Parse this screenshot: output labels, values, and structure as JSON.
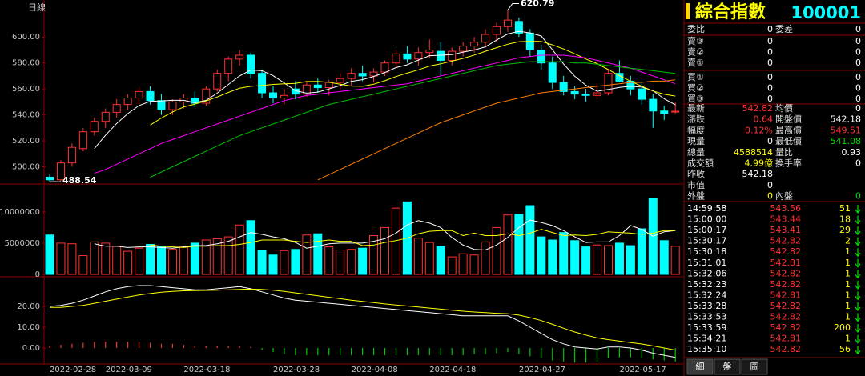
{
  "chart_data": [
    {
      "type": "candlestick",
      "title": "日線",
      "up_color": "#ff3232",
      "down_color": "#00ffff",
      "categories": [
        "2022-02-28",
        null,
        null,
        null,
        null,
        "2022-03-09",
        null,
        null,
        null,
        null,
        null,
        null,
        "2022-03-18",
        null,
        null,
        null,
        null,
        null,
        null,
        null,
        "2022-03-28",
        null,
        null,
        null,
        null,
        null,
        null,
        "2022-04-08",
        null,
        null,
        null,
        null,
        null,
        null,
        "2022-04-18",
        null,
        null,
        null,
        null,
        null,
        null,
        null,
        "2022-04-27",
        null,
        null,
        null,
        null,
        null,
        null,
        null,
        null,
        "2022-05-17",
        null,
        null,
        null,
        null,
        null
      ],
      "open": [
        492,
        490,
        503,
        514,
        527,
        535,
        542,
        548,
        553,
        558,
        551,
        544,
        550,
        553,
        549,
        560,
        572,
        583,
        586,
        572,
        557,
        553,
        560,
        556,
        563,
        561,
        565,
        568,
        572,
        570,
        573,
        580,
        587,
        583,
        588,
        589,
        582,
        589,
        593,
        596,
        602,
        608,
        612,
        603,
        590,
        580,
        565,
        558,
        556,
        555,
        557,
        572,
        566,
        560,
        552,
        543,
        542.18
      ],
      "high": [
        494,
        505,
        518,
        530,
        538,
        545,
        552,
        556,
        561,
        562,
        556,
        552,
        556,
        558,
        562,
        575,
        585,
        590,
        588,
        575,
        562,
        560,
        566,
        566,
        568,
        567,
        572,
        576,
        578,
        576,
        582,
        590,
        593,
        592,
        598,
        596,
        592,
        596,
        600,
        606,
        611,
        620.79,
        615,
        606,
        594,
        585,
        570,
        562,
        560,
        564,
        575,
        582,
        570,
        564,
        556,
        547,
        549.51
      ],
      "low": [
        488.54,
        489,
        500,
        512,
        524,
        530,
        538,
        544,
        548,
        548,
        540,
        540,
        545,
        546,
        547,
        558,
        566,
        578,
        568,
        553,
        549,
        548,
        552,
        554,
        557,
        555,
        560,
        562,
        566,
        565,
        570,
        576,
        580,
        578,
        584,
        570,
        578,
        585,
        588,
        592,
        596,
        604,
        600,
        585,
        575,
        560,
        555,
        552,
        550,
        552,
        555,
        565,
        555,
        548,
        530,
        536,
        541.08
      ],
      "close": [
        490,
        503,
        515,
        527,
        535,
        542,
        548,
        553,
        558,
        551,
        544,
        550,
        553,
        549,
        560,
        572,
        583,
        586,
        572,
        557,
        553,
        555,
        556,
        563,
        561,
        565,
        568,
        572,
        570,
        573,
        580,
        587,
        583,
        588,
        590,
        582,
        589,
        593,
        596,
        602,
        608,
        613,
        603,
        590,
        580,
        565,
        558,
        556,
        555,
        557,
        572,
        566,
        560,
        552,
        543,
        541,
        542.82
      ],
      "series": [
        {
          "color": "#ffffff",
          "values": [
            null,
            null,
            null,
            null,
            514,
            524.4,
            533.4,
            541,
            547.2,
            550.4,
            550.8,
            551.2,
            551.2,
            549.4,
            551.2,
            556.8,
            563.4,
            570,
            574.6,
            574,
            570.2,
            564.6,
            558.6,
            556.8,
            557.6,
            560,
            562.6,
            565.8,
            567.2,
            569.6,
            572.6,
            576.4,
            578.6,
            582.2,
            585.6,
            586,
            586.4,
            588.4,
            590,
            592.4,
            597.6,
            602.4,
            604.4,
            603.2,
            600.8,
            590.2,
            579.2,
            569.8,
            562.8,
            558.2,
            559.6,
            561.2,
            562,
            561.4,
            558.6,
            552.4,
            547.8
          ]
        },
        {
          "color": "#ffff00",
          "values": [
            null,
            null,
            null,
            null,
            null,
            null,
            null,
            null,
            null,
            532.2,
            537.6,
            542.3,
            546.1,
            548.3,
            550.8,
            553.8,
            557.3,
            560.6,
            562,
            562.6,
            563.5,
            564,
            564.3,
            565.7,
            565.8,
            565.1,
            563.6,
            562.2,
            562,
            563.6,
            566.3,
            569.5,
            572.2,
            574.7,
            577.6,
            579.3,
            581.4,
            583.5,
            586.1,
            589,
            591.8,
            594.4,
            596.4,
            596.6,
            596.6,
            593.9,
            590.8,
            587.1,
            583,
            579.5,
            574.9,
            570.2,
            565.9,
            562.1,
            558.4,
            556,
            554.5
          ]
        },
        {
          "color": "#ff00ff",
          "values": [
            null,
            null,
            null,
            null,
            495,
            498,
            502,
            506,
            510,
            514,
            518,
            521,
            524,
            527,
            530,
            533,
            536,
            539,
            542,
            545,
            548,
            551,
            553,
            555,
            556,
            557,
            558,
            559,
            560,
            561,
            562,
            563,
            564,
            566,
            568,
            570,
            572,
            574,
            576,
            578,
            580,
            582,
            584,
            585,
            586,
            586,
            586,
            585,
            584,
            582,
            580,
            578,
            576,
            573,
            570,
            567,
            564
          ]
        },
        {
          "color": "#00c000",
          "values": [
            null,
            null,
            null,
            null,
            null,
            null,
            null,
            null,
            null,
            492,
            496,
            500,
            504,
            508,
            512,
            516,
            520,
            524,
            527,
            530,
            533,
            536,
            539,
            542,
            545,
            548,
            550,
            552,
            554,
            556,
            558,
            560,
            562,
            564,
            566,
            568,
            570,
            572,
            574,
            576,
            578,
            579,
            580,
            581,
            581,
            581,
            581,
            580,
            580,
            579,
            578,
            577,
            576,
            575,
            574,
            573,
            572
          ]
        },
        {
          "color": "#ff8000",
          "values": [
            null,
            null,
            null,
            null,
            null,
            null,
            null,
            null,
            null,
            null,
            null,
            null,
            null,
            null,
            null,
            null,
            null,
            null,
            null,
            null,
            null,
            null,
            null,
            null,
            490,
            494,
            498,
            502,
            506,
            510,
            514,
            518,
            522,
            526,
            530,
            534,
            537,
            540,
            543,
            546,
            549,
            551,
            553,
            555,
            557,
            558,
            559,
            560,
            561,
            562,
            563,
            564,
            565,
            565,
            566,
            566,
            567
          ]
        }
      ],
      "ylim": [
        488,
        628.5
      ],
      "yticks": [
        {
          "value": 500,
          "label": "500.00"
        },
        {
          "value": 520,
          "label": "520.00"
        },
        {
          "value": 540,
          "label": "540.00"
        },
        {
          "value": 560,
          "label": "560.00"
        },
        {
          "value": 580,
          "label": "580.00"
        },
        {
          "value": 600,
          "label": "600.00"
        }
      ],
      "grid": false
    },
    {
      "type": "volume-bar",
      "values": [
        6300000,
        5000000,
        4900000,
        3000000,
        5200000,
        5000000,
        4500000,
        3700000,
        4200000,
        4800000,
        4500000,
        4000000,
        4400000,
        5000000,
        5500000,
        5700000,
        6000000,
        7900000,
        8600000,
        3900000,
        3100000,
        3800000,
        4000000,
        6300000,
        6500000,
        4400000,
        3900000,
        4000000,
        4200000,
        6200000,
        7500000,
        10600000,
        11600000,
        5800000,
        5100000,
        4500000,
        2800000,
        3300000,
        3100000,
        5200000,
        7500000,
        9500000,
        9600000,
        11000000,
        6000000,
        5500000,
        6700000,
        5400000,
        4400000,
        4700000,
        4600000,
        5000000,
        4600000,
        7300000,
        12100000,
        5400000,
        4500000
      ],
      "series": [
        {
          "color": "#ffffff",
          "values": [
            null,
            null,
            null,
            null,
            4900000,
            4500000,
            4500000,
            4300000,
            4400000,
            4400000,
            4300000,
            4200000,
            4400000,
            4600000,
            4600000,
            4900000,
            5300000,
            6000000,
            6700000,
            6400000,
            6000000,
            5700000,
            5100000,
            4200000,
            4500000,
            4900000,
            5000000,
            5000000,
            5000000,
            5300000,
            5700000,
            6600000,
            7900000,
            8600000,
            8200000,
            7500000,
            5900000,
            4700000,
            4000000,
            3900000,
            4700000,
            5900000,
            7500000,
            8700000,
            8300000,
            7800000,
            7000000,
            6000000,
            5100000,
            5200000,
            5200000,
            6200000,
            7800000,
            7200000,
            6100000,
            6800000,
            7000000
          ]
        },
        {
          "color": "#ffff00",
          "values": [
            null,
            null,
            null,
            null,
            null,
            null,
            null,
            null,
            null,
            4700000,
            4500000,
            4400000,
            4300000,
            4500000,
            4500000,
            4600000,
            4600000,
            4800000,
            5100000,
            5500000,
            5500000,
            5500000,
            5300000,
            5100000,
            5300000,
            5500000,
            5300000,
            5300000,
            4600000,
            4700000,
            5100000,
            5400000,
            5800000,
            6500000,
            6900000,
            7000000,
            7000000,
            6200000,
            6600000,
            6200000,
            6200000,
            6500000,
            6200000,
            6600000,
            7200000,
            6700000,
            6200000,
            6300000,
            6200000,
            6400000,
            6800000,
            6700000,
            6600000,
            6400000,
            6600000,
            7000000,
            7000000
          ]
        }
      ],
      "ylim": [
        0,
        14200000
      ],
      "yticks": [
        0,
        5000000,
        10000000
      ],
      "grid": false
    },
    {
      "type": "macd",
      "pos_color": "#ff3232",
      "neg_color": "#00c800",
      "values": [
        1,
        1.5,
        2,
        2.5,
        3,
        3,
        3,
        3,
        3,
        2.5,
        2,
        2,
        1.5,
        1,
        1,
        1,
        1,
        1,
        0.5,
        -1,
        -2,
        -3,
        -3.5,
        -3.5,
        -3.5,
        -3.5,
        -3.5,
        -3.5,
        -3.5,
        -3.5,
        -3.5,
        -3.5,
        -3.5,
        -3.5,
        -3.5,
        -3.5,
        -3.5,
        -3.5,
        -3,
        -3,
        -2.5,
        -2,
        -3,
        -4,
        -5,
        -6,
        -6.5,
        -7,
        -7,
        -6.5,
        -5,
        -4.5,
        -4.5,
        -5,
        -5.5,
        -6,
        -6.5
      ],
      "series": [
        {
          "color": "#ffffff",
          "values": [
            20,
            20.5,
            21.5,
            23,
            25,
            27,
            28.5,
            29.5,
            30,
            30,
            29.5,
            29,
            28.5,
            28,
            28,
            28.5,
            29,
            29.5,
            28.5,
            27,
            25.5,
            24,
            23,
            22.5,
            22,
            21.5,
            21,
            20.5,
            20,
            19.5,
            19,
            18.5,
            18,
            17.5,
            17,
            16.5,
            16,
            15.5,
            15.5,
            15.5,
            15.5,
            15.5,
            13,
            10,
            7,
            4,
            2,
            0.5,
            0,
            -0.5,
            0.5,
            0.5,
            0,
            -1,
            -2.5,
            -3.5,
            -4.5
          ]
        },
        {
          "color": "#ffff00",
          "values": [
            19.5,
            19.5,
            20,
            20.5,
            21.5,
            22.5,
            23.5,
            24.5,
            25.5,
            26.2,
            26.8,
            27.2,
            27.5,
            27.6,
            27.7,
            27.8,
            28,
            28.2,
            28.3,
            28.2,
            27.8,
            27.2,
            26.5,
            25.8,
            25.1,
            24.4,
            23.7,
            23,
            22.4,
            21.8,
            21.2,
            20.7,
            20.2,
            19.7,
            19.2,
            18.7,
            18.2,
            17.7,
            17.3,
            17,
            16.7,
            16.5,
            15.8,
            14.6,
            13.2,
            11.4,
            9.5,
            7.7,
            6.2,
            4.9,
            4,
            3.3,
            2.6,
            1.9,
            1,
            0,
            -1
          ]
        }
      ],
      "ylim": [
        -7.7,
        32.7
      ],
      "yticks": [
        {
          "value": 0,
          "label": "0.00"
        },
        {
          "value": 10,
          "label": "10.00"
        },
        {
          "value": 20,
          "label": "20.00"
        }
      ],
      "grid": false
    }
  ],
  "quote_panel": {
    "title": "綜合指數",
    "code": "100001",
    "order_row": [
      "委比",
      "0",
      "委差",
      "0"
    ],
    "sell": [
      [
        "賣③",
        "0",
        "0"
      ],
      [
        "賣②",
        "0",
        "0"
      ],
      [
        "賣①",
        "0",
        "0"
      ]
    ],
    "buy": [
      [
        "買①",
        "0",
        "0"
      ],
      [
        "買②",
        "0",
        "0"
      ],
      [
        "買③",
        "0",
        "0"
      ]
    ],
    "stats": [
      [
        "最新",
        "542.82",
        "均價",
        "0"
      ],
      [
        "漲跌",
        "0.64",
        "開盤價",
        "542.18"
      ],
      [
        "幅度",
        "0.12%",
        "最高價",
        "549.51"
      ],
      [
        "現量",
        "0",
        "最低價",
        "541.08"
      ],
      [
        "總量",
        "4588514",
        "量比",
        "0.93"
      ],
      [
        "成交額",
        "4.99億",
        "換手率",
        "0"
      ],
      [
        "昨收",
        "542.18"
      ],
      [
        "市值",
        "0"
      ],
      [
        "外盤",
        "0",
        "內盤",
        "0"
      ]
    ],
    "ticks": [
      [
        "14:59:58",
        "543.56",
        "51"
      ],
      [
        "15:00:00",
        "543.44",
        "18"
      ],
      [
        "15:00:17",
        "543.41",
        "29"
      ],
      [
        "15:30:17",
        "542.82",
        "2"
      ],
      [
        "15:30:18",
        "542.82",
        "1"
      ],
      [
        "15:31:01",
        "542.81",
        "1"
      ],
      [
        "15:32:06",
        "542.82",
        "1"
      ],
      [
        "15:32:23",
        "542.82",
        "1"
      ],
      [
        "15:32:24",
        "542.81",
        "1"
      ],
      [
        "15:33:28",
        "542.82",
        "1"
      ],
      [
        "15:33:53",
        "542.82",
        "1"
      ],
      [
        "15:33:59",
        "542.82",
        "200"
      ],
      [
        "15:34:21",
        "542.81",
        "1"
      ],
      [
        "15:35:10",
        "542.82",
        "56"
      ]
    ],
    "tabs": [
      "細",
      "盤",
      "圖"
    ]
  }
}
